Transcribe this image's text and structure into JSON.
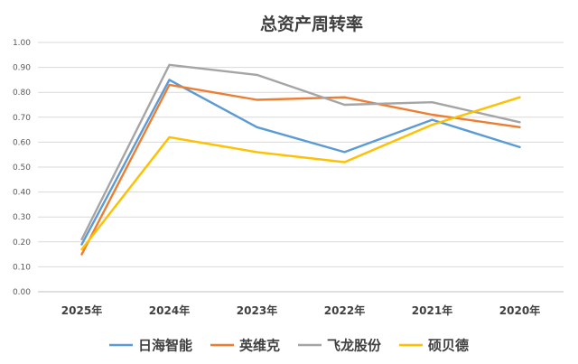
{
  "chart_data": {
    "type": "line",
    "title": "总资产周转率",
    "xlabel": "",
    "ylabel": "",
    "categories": [
      "2025年",
      "2024年",
      "2023年",
      "2022年",
      "2021年",
      "2020年"
    ],
    "ylim": [
      0,
      1
    ],
    "yticks": [
      "0.00",
      "0.10",
      "0.20",
      "0.30",
      "0.40",
      "0.50",
      "0.60",
      "0.70",
      "0.80",
      "0.90",
      "1.00"
    ],
    "grid": true,
    "legend_position": "bottom",
    "series": [
      {
        "name": "日海智能",
        "color": "#5b9bd5",
        "values": [
          0.19,
          0.85,
          0.66,
          0.56,
          0.69,
          0.58
        ]
      },
      {
        "name": "英维克",
        "color": "#ed7d31",
        "values": [
          0.15,
          0.83,
          0.77,
          0.78,
          0.71,
          0.66
        ]
      },
      {
        "name": "飞龙股份",
        "color": "#a5a5a5",
        "values": [
          0.21,
          0.91,
          0.87,
          0.75,
          0.76,
          0.68
        ]
      },
      {
        "name": "硕贝德",
        "color": "#ffc000",
        "values": [
          0.17,
          0.62,
          0.56,
          0.52,
          0.67,
          0.78
        ]
      }
    ]
  }
}
